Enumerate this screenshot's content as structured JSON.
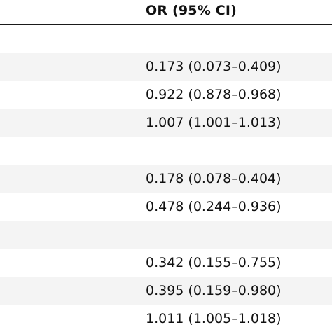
{
  "header": {
    "or_label": "OR (95% CI)"
  },
  "rows": [
    {
      "value": ""
    },
    {
      "value": "0.173 (0.073–0.409)"
    },
    {
      "value": "0.922 (0.878–0.968)"
    },
    {
      "value": "1.007 (1.001–1.013)"
    },
    {
      "value": ""
    },
    {
      "value": "0.178 (0.078–0.404)"
    },
    {
      "value": "0.478 (0.244–0.936)"
    },
    {
      "value": ""
    },
    {
      "value": "0.342 (0.155–0.755)"
    },
    {
      "value": "0.395 (0.159–0.980)"
    },
    {
      "value": "1.011 (1.005–1.018)"
    }
  ]
}
